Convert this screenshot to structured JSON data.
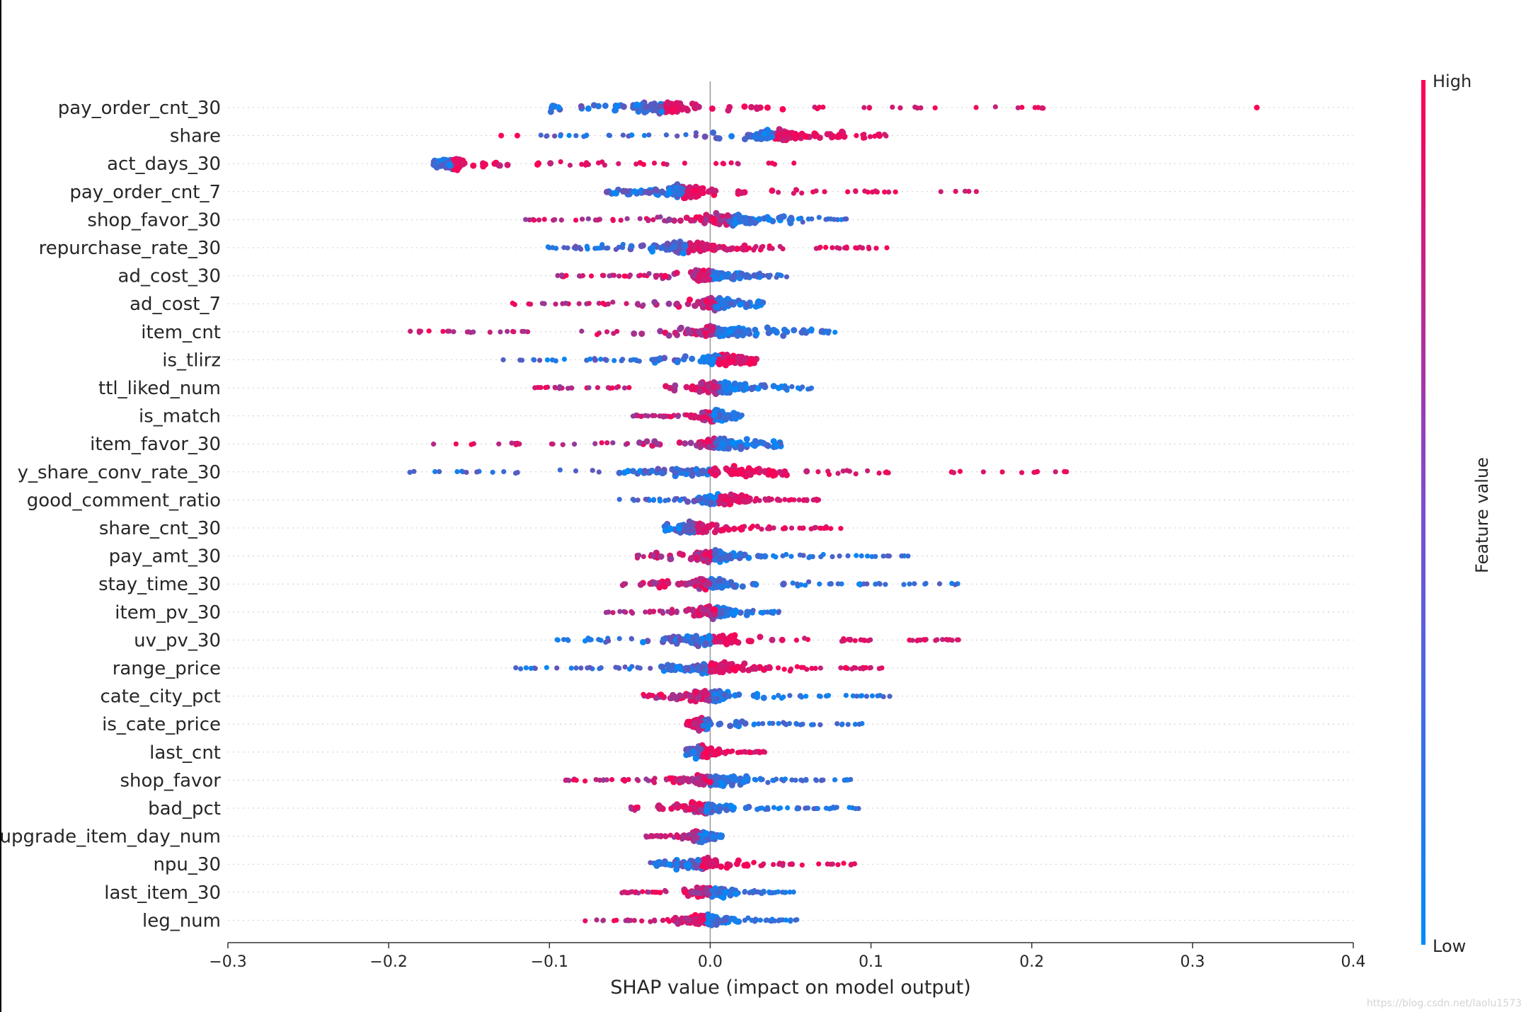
{
  "chart_data": {
    "type": "scatter",
    "subtype": "shap-beeswarm",
    "xlabel": "SHAP value (impact on model output)",
    "xlim": [
      -0.3,
      0.4
    ],
    "xticks": [
      "−0.3",
      "−0.2",
      "−0.1",
      "0.0",
      "0.1",
      "0.2",
      "0.3",
      "0.4"
    ],
    "xtick_values": [
      -0.3,
      -0.2,
      -0.1,
      0.0,
      0.1,
      0.2,
      0.3,
      0.4
    ],
    "colorbar": {
      "label": "Feature value",
      "high": "High",
      "low": "Low",
      "high_color": "#ff0052",
      "low_color": "#008bfb"
    },
    "features": [
      {
        "name": "pay_order_cnt_30",
        "range": [
          -0.1,
          0.222
        ],
        "outliers": [
          0.34
        ],
        "pos_color": "high",
        "center": -0.03
      },
      {
        "name": "share",
        "range": [
          -0.112,
          0.11
        ],
        "outliers": [
          -0.13,
          -0.12
        ],
        "pos_color": "high",
        "center": 0.04
      },
      {
        "name": "act_days_30",
        "range": [
          -0.172,
          0.063
        ],
        "outliers": [],
        "pos_color": "high",
        "center": -0.16
      },
      {
        "name": "pay_order_cnt_7",
        "range": [
          -0.065,
          0.17
        ],
        "outliers": [],
        "pos_color": "high",
        "center": -0.017
      },
      {
        "name": "shop_favor_30",
        "range": [
          -0.118,
          0.09
        ],
        "outliers": [],
        "pos_color": "low",
        "center": 0.012
      },
      {
        "name": "repurchase_rate_30",
        "range": [
          -0.102,
          0.112
        ],
        "outliers": [],
        "pos_color": "high",
        "center": -0.015
      },
      {
        "name": "ad_cost_30",
        "range": [
          -0.095,
          0.048
        ],
        "outliers": [],
        "pos_color": "low",
        "center": 0.0
      },
      {
        "name": "ad_cost_7",
        "range": [
          -0.125,
          0.033
        ],
        "outliers": [],
        "pos_color": "low",
        "center": 0.003
      },
      {
        "name": "item_cnt",
        "range": [
          -0.188,
          0.078
        ],
        "outliers": [],
        "pos_color": "low",
        "center": 0.003
      },
      {
        "name": "is_tlirz",
        "range": [
          -0.13,
          0.03
        ],
        "outliers": [],
        "pos_color": "high",
        "center": 0.005
      },
      {
        "name": "ttl_liked_num",
        "range": [
          -0.112,
          0.064
        ],
        "outliers": [],
        "pos_color": "low",
        "center": 0.005
      },
      {
        "name": "is_match",
        "range": [
          -0.048,
          0.02
        ],
        "outliers": [],
        "pos_color": "low",
        "center": 0.002
      },
      {
        "name": "item_favor_30",
        "range": [
          -0.173,
          0.045
        ],
        "outliers": [],
        "pos_color": "low",
        "center": 0.003
      },
      {
        "name": "y_share_conv_rate_30",
        "range": [
          -0.193,
          0.222
        ],
        "outliers": [],
        "pos_color": "high",
        "center": 0.0
      },
      {
        "name": "good_comment_ratio",
        "range": [
          -0.063,
          0.068
        ],
        "outliers": [],
        "pos_color": "high",
        "center": 0.005
      },
      {
        "name": "share_cnt_30",
        "range": [
          -0.03,
          0.083
        ],
        "outliers": [],
        "pos_color": "high",
        "center": -0.01
      },
      {
        "name": "pay_amt_30",
        "range": [
          -0.046,
          0.124
        ],
        "outliers": [],
        "pos_color": "low",
        "center": 0.002
      },
      {
        "name": "stay_time_30",
        "range": [
          -0.055,
          0.155
        ],
        "outliers": [],
        "pos_color": "low",
        "center": 0.0
      },
      {
        "name": "item_pv_30",
        "range": [
          -0.067,
          0.043
        ],
        "outliers": [],
        "pos_color": "low",
        "center": 0.003
      },
      {
        "name": "uv_pv_30",
        "range": [
          -0.098,
          0.155
        ],
        "outliers": [],
        "pos_color": "high",
        "center": 0.0
      },
      {
        "name": "range_price",
        "range": [
          -0.124,
          0.107
        ],
        "outliers": [],
        "pos_color": "high",
        "center": 0.0
      },
      {
        "name": "cate_city_pct",
        "range": [
          -0.043,
          0.112
        ],
        "outliers": [],
        "pos_color": "low",
        "center": 0.0
      },
      {
        "name": "is_cate_price",
        "range": [
          -0.015,
          0.095
        ],
        "outliers": [],
        "pos_color": "low",
        "center": -0.005
      },
      {
        "name": "last_cnt",
        "range": [
          -0.015,
          0.034
        ],
        "outliers": [],
        "pos_color": "high",
        "center": -0.005
      },
      {
        "name": "shop_favor",
        "range": [
          -0.09,
          0.09
        ],
        "outliers": [],
        "pos_color": "low",
        "center": 0.0
      },
      {
        "name": "bad_pct",
        "range": [
          -0.05,
          0.096
        ],
        "outliers": [],
        "pos_color": "low",
        "center": -0.003
      },
      {
        "name": "upgrade_item_day_num",
        "range": [
          -0.04,
          0.008
        ],
        "outliers": [],
        "pos_color": "low",
        "center": -0.007
      },
      {
        "name": "npu_30",
        "range": [
          -0.038,
          0.09
        ],
        "outliers": [],
        "pos_color": "high",
        "center": -0.005
      },
      {
        "name": "last_item_30",
        "range": [
          -0.055,
          0.052
        ],
        "outliers": [],
        "pos_color": "low",
        "center": 0.0
      },
      {
        "name": "leg_num",
        "range": [
          -0.078,
          0.054
        ],
        "outliers": [],
        "pos_color": "low",
        "center": -0.003
      }
    ]
  },
  "watermark": "https://blog.csdn.net/laolu1573"
}
